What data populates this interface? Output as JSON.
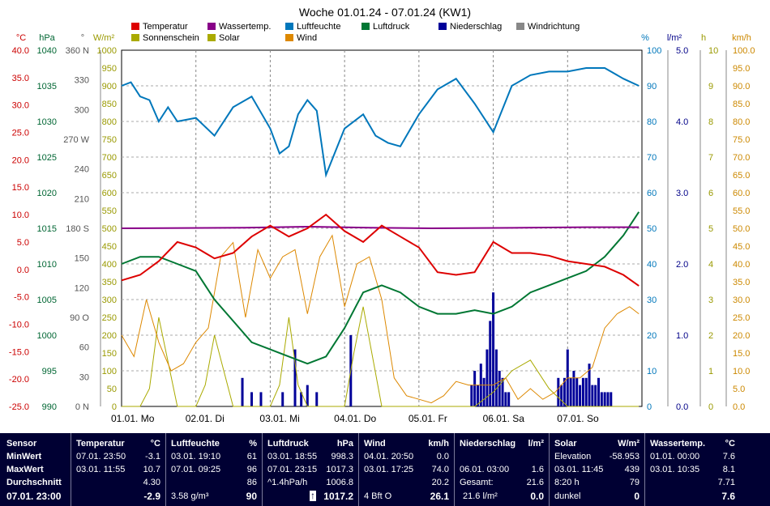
{
  "chart_data": {
    "type": "line",
    "title": "Woche 01.01.24 - 07.01.24 (KW1)",
    "x_labels": [
      "01.01. Mo",
      "02.01. Di",
      "03.01. Mi",
      "04.01. Do",
      "05.01. Fr",
      "06.01. Sa",
      "07.01. So"
    ],
    "axes": {
      "temp": {
        "unit": "°C",
        "min": -25,
        "max": 40,
        "ticks": [
          "40.0",
          "35.0",
          "30.0",
          "25.0",
          "20.0",
          "15.0",
          "10.0",
          "5.0",
          "0.0",
          "-5.0",
          "-10.0",
          "-15.0",
          "-20.0",
          "-25.0"
        ]
      },
      "pressure": {
        "unit": "hPa",
        "min": 990,
        "max": 1040,
        "ticks": [
          "1040",
          "1035",
          "1030",
          "1025",
          "1020",
          "1015",
          "1010",
          "1005",
          "1000",
          "995",
          "990"
        ]
      },
      "direction": {
        "unit": "°",
        "ticks": [
          "360 N",
          "330",
          "300",
          "270 W",
          "240",
          "210",
          "180 S",
          "150",
          "120",
          "90 O",
          "60",
          "30",
          "0 N"
        ]
      },
      "solar": {
        "unit": "W/m²",
        "min": 0,
        "max": 1000,
        "ticks": [
          "1000",
          "950",
          "900",
          "850",
          "800",
          "750",
          "700",
          "650",
          "600",
          "550",
          "500",
          "450",
          "400",
          "350",
          "300",
          "250",
          "200",
          "150",
          "100",
          "50",
          "0"
        ]
      },
      "humidity": {
        "unit": "%",
        "min": 0,
        "max": 100,
        "ticks": [
          "100",
          "90",
          "80",
          "70",
          "60",
          "50",
          "40",
          "30",
          "20",
          "10",
          "0"
        ]
      },
      "rain": {
        "unit": "l/m²",
        "min": 0,
        "max": 5,
        "ticks": [
          "5.0",
          "4.0",
          "3.0",
          "2.0",
          "1.0",
          "0.0"
        ]
      },
      "sun": {
        "unit": "h",
        "min": 0,
        "max": 10,
        "ticks": [
          "10",
          "9",
          "8",
          "7",
          "6",
          "5",
          "4",
          "3",
          "2",
          "1",
          "0"
        ]
      },
      "wind": {
        "unit": "km/h",
        "min": 0,
        "max": 100,
        "ticks": [
          "100.0",
          "95.0",
          "90.0",
          "85.0",
          "80.0",
          "75.0",
          "70.0",
          "65.0",
          "60.0",
          "55.0",
          "50.0",
          "45.0",
          "40.0",
          "35.0",
          "30.0",
          "25.0",
          "20.0",
          "15.0",
          "10.0",
          "5.0",
          "0.0"
        ]
      }
    },
    "legend": [
      {
        "name": "Temperatur",
        "color": "#dd0000"
      },
      {
        "name": "Wassertemp.",
        "color": "#880088"
      },
      {
        "name": "Luftfeuchte",
        "color": "#0077bb"
      },
      {
        "name": "Luftdruck",
        "color": "#007733"
      },
      {
        "name": "Niederschlag",
        "color": "#000099"
      },
      {
        "name": "Windrichtung",
        "color": "#888888"
      },
      {
        "name": "Sonnenschein",
        "color": "#aaaa00"
      },
      {
        "name": "Solar",
        "color": "#aaaa00"
      },
      {
        "name": "Wind",
        "color": "#dd8800"
      }
    ],
    "series": {
      "temperature": {
        "axis": "temp",
        "color": "#dd0000",
        "x": [
          0,
          6,
          12,
          18,
          24,
          30,
          36,
          42,
          48,
          54,
          60,
          66,
          72,
          78,
          84,
          90,
          96,
          102,
          108,
          114,
          120,
          126,
          132,
          138,
          144,
          150,
          156,
          162,
          167
        ],
        "y": [
          -2,
          -1,
          1.5,
          5,
          4,
          2,
          3,
          6,
          8,
          6,
          7.5,
          10,
          7,
          5,
          8,
          6,
          4,
          -0.5,
          -1,
          -0.5,
          5,
          3,
          3,
          2.5,
          1.5,
          1,
          0.5,
          -1,
          -3
        ]
      },
      "water_temp": {
        "axis": "temp",
        "color": "#880088",
        "x": [
          0,
          40,
          60,
          80,
          100,
          130,
          150,
          167
        ],
        "y": [
          7.5,
          7.6,
          7.8,
          7.6,
          7.5,
          7.6,
          7.7,
          7.71
        ]
      },
      "humidity": {
        "axis": "humidity",
        "color": "#0077bb",
        "x": [
          0,
          3,
          6,
          9,
          12,
          15,
          18,
          24,
          30,
          36,
          42,
          48,
          51,
          54,
          57,
          60,
          63,
          66,
          72,
          78,
          82,
          86,
          90,
          96,
          102,
          108,
          114,
          120,
          126,
          132,
          138,
          144,
          150,
          156,
          162,
          167
        ],
        "y": [
          90,
          91,
          87,
          86,
          80,
          84,
          80,
          81,
          76,
          84,
          87,
          78,
          71,
          73,
          82,
          86,
          83,
          65,
          78,
          82,
          76,
          74,
          73,
          82,
          89,
          92,
          85,
          77,
          90,
          93,
          94,
          94,
          95,
          95,
          92,
          90
        ]
      },
      "pressure": {
        "axis": "pressure",
        "color": "#007733",
        "x": [
          0,
          6,
          12,
          18,
          24,
          30,
          36,
          42,
          48,
          54,
          60,
          66,
          72,
          78,
          84,
          90,
          96,
          102,
          108,
          114,
          120,
          126,
          132,
          138,
          144,
          150,
          156,
          162,
          167
        ],
        "y": [
          1010,
          1011,
          1011,
          1010,
          1009,
          1005,
          1002,
          999,
          998,
          997,
          996,
          997,
          1001,
          1006,
          1007,
          1006,
          1004,
          1003,
          1003,
          1003.5,
          1003,
          1004,
          1006,
          1007,
          1008,
          1009,
          1011,
          1014,
          1017.3
        ]
      },
      "wind": {
        "axis": "wind",
        "color": "#dd8800",
        "x": [
          0,
          4,
          8,
          12,
          16,
          20,
          24,
          28,
          32,
          36,
          40,
          44,
          48,
          52,
          56,
          60,
          64,
          68,
          72,
          76,
          80,
          84,
          88,
          92,
          96,
          100,
          104,
          108,
          112,
          116,
          120,
          124,
          128,
          132,
          136,
          140,
          144,
          148,
          152,
          156,
          160,
          164,
          167
        ],
        "y": [
          20,
          14,
          30,
          18,
          10,
          12,
          18,
          22,
          42,
          46,
          25,
          44,
          36,
          42,
          44,
          26,
          42,
          48,
          28,
          40,
          42,
          30,
          8,
          3,
          2,
          1,
          3,
          7,
          6,
          6,
          6,
          8,
          2,
          5,
          2,
          4,
          8,
          8,
          11,
          22,
          26,
          28,
          26
        ]
      },
      "solar": {
        "axis": "solar",
        "color": "#aaaa00",
        "x": [
          0,
          6,
          9,
          12,
          18,
          24,
          27,
          30,
          36,
          42,
          48,
          51,
          54,
          57,
          60,
          66,
          72,
          75,
          78,
          84,
          96,
          102,
          108,
          114,
          120,
          126,
          132,
          138,
          144,
          150,
          156,
          160,
          164,
          167
        ],
        "y": [
          0,
          0,
          50,
          250,
          0,
          0,
          60,
          200,
          0,
          0,
          0,
          60,
          250,
          60,
          0,
          0,
          0,
          150,
          280,
          0,
          0,
          0,
          0,
          0,
          40,
          100,
          130,
          50,
          0,
          0,
          0,
          0,
          0,
          0
        ]
      },
      "rain": {
        "axis": "rain",
        "color": "#000099",
        "x": [
          39,
          42,
          45,
          52,
          56,
          58,
          60,
          63,
          74,
          113,
          114,
          115,
          116,
          117,
          118,
          119,
          120,
          121,
          122,
          123,
          124,
          125,
          141,
          142,
          143,
          144,
          145,
          146,
          147,
          148,
          149,
          150,
          151,
          152,
          153,
          154,
          155,
          156,
          157,
          158
        ],
        "y": [
          0.4,
          0.2,
          0.2,
          0.2,
          0.8,
          0.2,
          0.3,
          0.2,
          1.0,
          0.3,
          0.5,
          0.3,
          0.6,
          0.4,
          0.8,
          1.2,
          1.6,
          0.8,
          0.5,
          0.4,
          0.2,
          0.2,
          0.4,
          0.3,
          0.4,
          0.8,
          0.4,
          0.5,
          0.4,
          0.3,
          0.4,
          0.4,
          0.6,
          0.3,
          0.3,
          0.4,
          0.2,
          0.2,
          0.2,
          0.2
        ]
      }
    }
  },
  "table": {
    "sensor": [
      "Sensor",
      "MinWert",
      "MaxWert",
      "Durchschnitt",
      "07.01. 23:00"
    ],
    "temperature": {
      "header": "Temperatur",
      "unit": "°C",
      "min_time": "07.01. 23:50",
      "min": "-3.1",
      "max_time": "03.01. 11:55",
      "max": "10.7",
      "avg": "4.30",
      "current": "-2.9"
    },
    "humidity": {
      "header": "Luftfeuchte",
      "unit": "%",
      "min_time": "03.01. 19:10",
      "min": "61",
      "max_time": "07.01. 09:25",
      "max": "96",
      "avg": "86",
      "extra": "3.58 g/m³",
      "current": "90"
    },
    "pressure": {
      "header": "Luftdruck",
      "unit": "hPa",
      "min_time": "03.01. 18:55",
      "min": "998.3",
      "max_time": "07.01. 23:15",
      "max": "1017.3",
      "trend": "^1.4hPa/h",
      "avg": "1006.8",
      "arrow": "↑",
      "current": "1017.2"
    },
    "wind": {
      "header": "Wind",
      "unit": "km/h",
      "min_time": "04.01. 20:50",
      "min": "0.0",
      "max_time": "03.01. 17:25",
      "max": "74.0",
      "avg": "20.2",
      "extra": "4 Bft O",
      "current": "26.1"
    },
    "rain": {
      "header": "Niederschlag",
      "unit": "l/m²",
      "max_time": "06.01. 03:00",
      "max": "1.6",
      "total_label": "Gesamt:",
      "total": "21.6",
      "extra": "21.6 l/m²",
      "current": "0.0"
    },
    "solar": {
      "header": "Solar",
      "unit": "W/m²",
      "l1": "Elevation",
      "v1": "-58.953",
      "l2": "03.01. 11:45",
      "v2": "439",
      "l3": "8:20 h",
      "v3": "79",
      "l4": "dunkel",
      "v4": "0"
    },
    "water": {
      "header": "Wassertemp.",
      "unit": "°C",
      "min_time": "01.01. 00:00",
      "min": "7.6",
      "max_time": "03.01. 10:35",
      "max": "8.1",
      "avg": "7.71",
      "current": "7.6"
    }
  }
}
